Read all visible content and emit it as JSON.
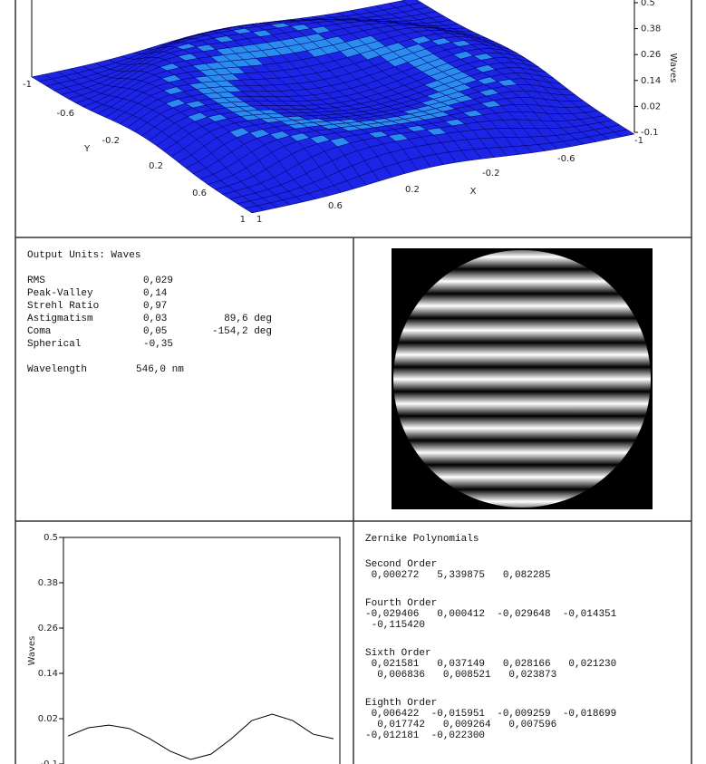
{
  "surface_plot": {
    "z_label": "Waves",
    "x_label": "X",
    "y_label": "Y",
    "x_ticks": [
      -1,
      -0.6,
      -0.2,
      0.2,
      0.6,
      1
    ],
    "y_ticks": [
      -1,
      -0.6,
      -0.2,
      0.2,
      0.6,
      1
    ],
    "z_ticks": [
      0.5,
      0.38,
      0.26,
      0.14,
      0.02,
      -0.1
    ]
  },
  "stats": {
    "title": "Output Units: Waves",
    "rows": [
      [
        "RMS",
        "0,029"
      ],
      [
        "Peak-Valley",
        "0,14"
      ],
      [
        "Strehl Ratio",
        "0,97"
      ],
      [
        "Astigmatism",
        "0,03",
        "89,6 deg"
      ],
      [
        "Coma",
        "0,05",
        "-154,2 deg"
      ],
      [
        "Spherical",
        "-0,35"
      ]
    ],
    "wavelength": [
      "Wavelength",
      "546,0 nm"
    ]
  },
  "profile_plot": {
    "y_label": "Waves",
    "ylim": [
      -0.1,
      0.5
    ],
    "yticks": [
      0.5,
      0.38,
      0.26,
      0.14,
      0.02,
      -0.1
    ],
    "values": [
      -0.026,
      -0.004,
      0.003,
      -0.006,
      -0.033,
      -0.066,
      -0.088,
      -0.074,
      -0.033,
      0.015,
      0.032,
      0.015,
      -0.021,
      -0.033
    ]
  },
  "zernike": {
    "title": "Zernike Polynomials",
    "groups": [
      {
        "name": "Second Order",
        "lines": [
          " 0,000272   5,339875   0,082285"
        ]
      },
      {
        "name": "Fourth Order",
        "lines": [
          "-0,029406   0,000412  -0,029648  -0,014351",
          " -0,115420"
        ]
      },
      {
        "name": "Sixth Order",
        "lines": [
          " 0,021581   0,037149   0,028166   0,021230",
          "  0,006836   0,008521   0,023873"
        ]
      },
      {
        "name": "Eighth Order",
        "lines": [
          " 0,006422  -0,015951  -0,009259  -0,018699",
          "  0,017742   0,009264   0,007596",
          "-0,012181  -0,022300"
        ]
      }
    ]
  }
}
